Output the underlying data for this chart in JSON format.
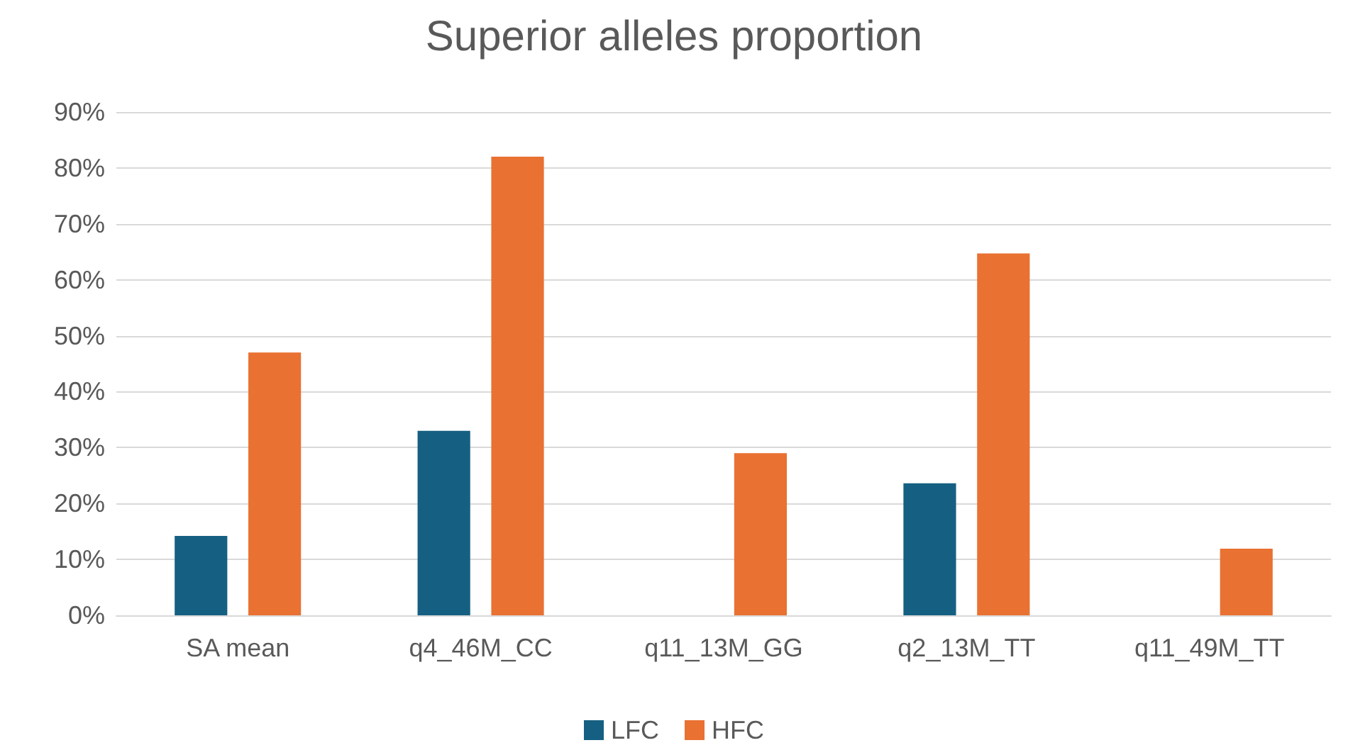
{
  "chart_data": {
    "type": "bar",
    "title": "Superior alleles proportion",
    "categories": [
      "SA mean",
      "q4_46M_CC",
      "q11_13M_GG",
      "q2_13M_TT",
      "q11_49M_TT"
    ],
    "series": [
      {
        "name": "LFC",
        "color": "#156082",
        "values": [
          14.2,
          33,
          0,
          23.6,
          0
        ]
      },
      {
        "name": "HFC",
        "color": "#e97132",
        "values": [
          47,
          82,
          29,
          64.7,
          11.9
        ]
      }
    ],
    "ylim": [
      0,
      90
    ],
    "yticks": [
      {
        "value": 0,
        "label": "0%"
      },
      {
        "value": 10,
        "label": "10%"
      },
      {
        "value": 20,
        "label": "20%"
      },
      {
        "value": 30,
        "label": "30%"
      },
      {
        "value": 40,
        "label": "40%"
      },
      {
        "value": 50,
        "label": "50%"
      },
      {
        "value": 60,
        "label": "60%"
      },
      {
        "value": 70,
        "label": "70%"
      },
      {
        "value": 80,
        "label": "80%"
      },
      {
        "value": 90,
        "label": "90%"
      }
    ],
    "grid": "y",
    "legend": "bottom"
  }
}
